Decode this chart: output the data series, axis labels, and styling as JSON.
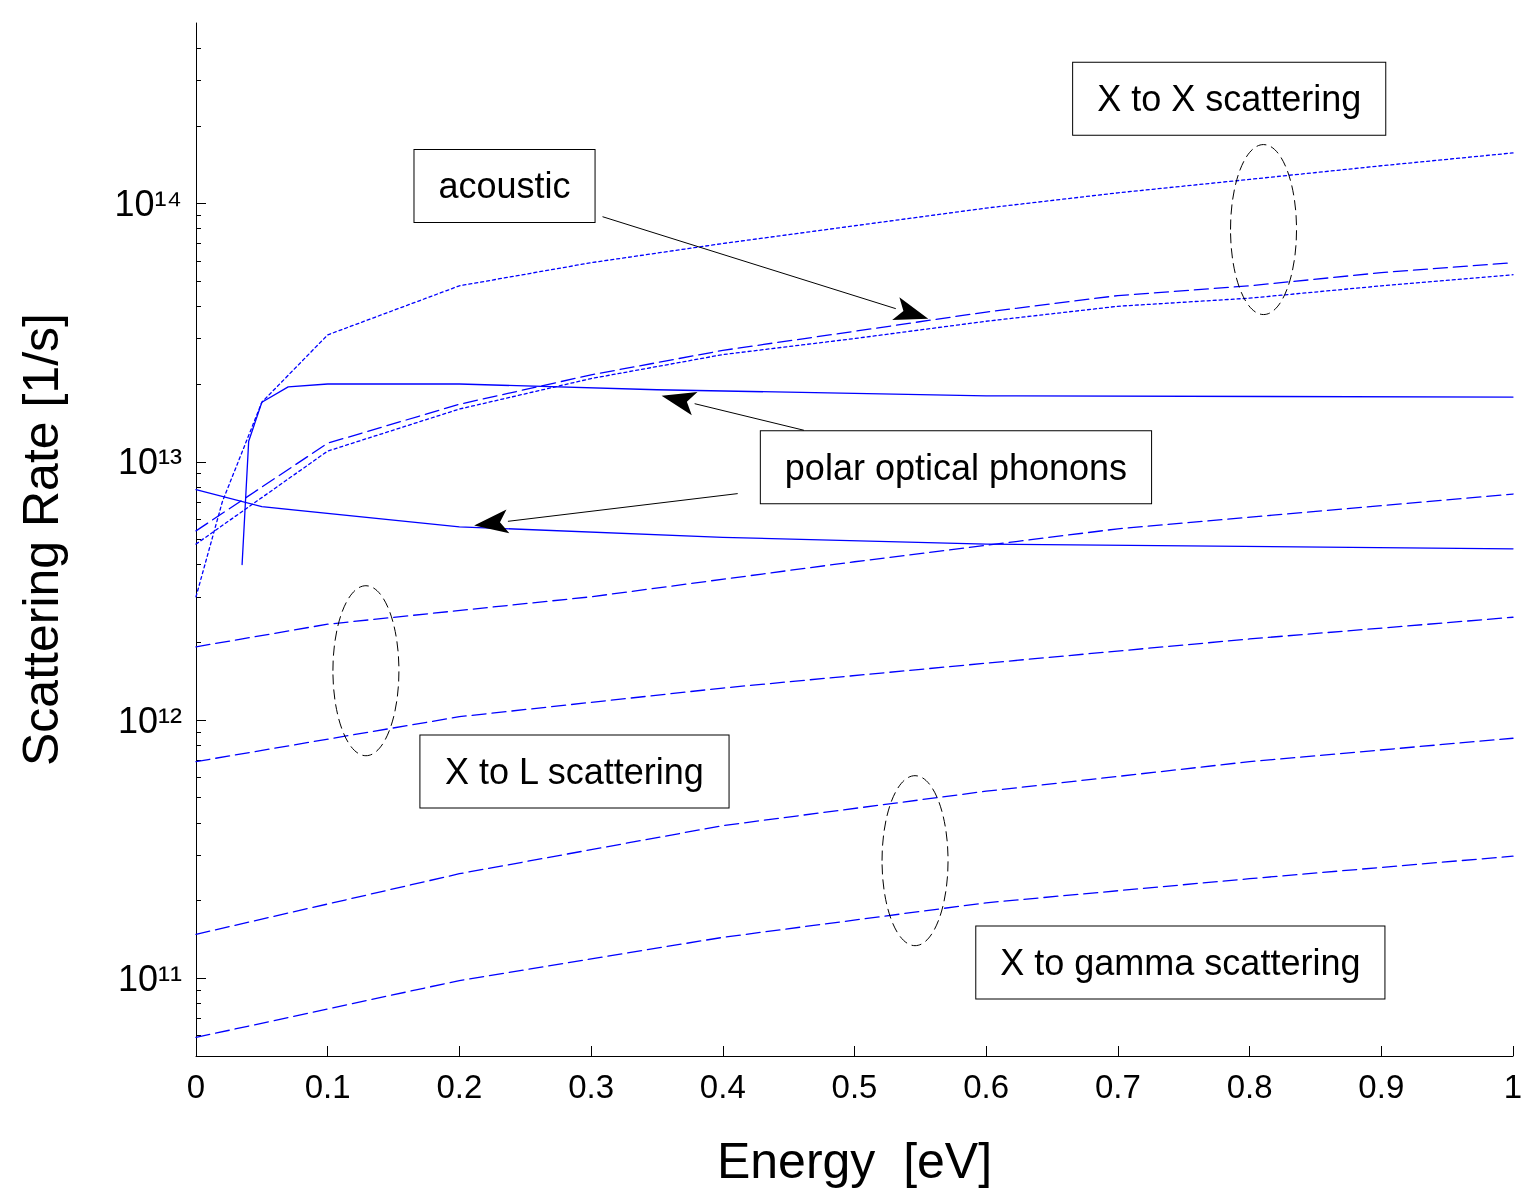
{
  "chart_data": {
    "type": "line",
    "xlabel": "Energy  [eV]",
    "ylabel": "Scattering Rate [1/s]",
    "log": "y",
    "grid": false,
    "marker": "none",
    "xlim": [
      0,
      1
    ],
    "xticks": [
      0,
      0.1,
      0.2,
      0.3,
      0.4,
      0.5,
      0.6,
      0.7,
      0.8,
      0.9,
      1
    ],
    "ylim": [
      50000000000.0,
      500000000000000.0
    ],
    "yticks": [
      {
        "value": 100000000000.0,
        "label": "10¹¹"
      },
      {
        "value": 1000000000000.0,
        "label": "10¹²"
      },
      {
        "value": 10000000000000.0,
        "label": "10¹³"
      },
      {
        "value": 100000000000000.0,
        "label": "10¹⁴"
      }
    ],
    "series": [
      {
        "color": "#0000ff",
        "line_style": "dotted",
        "x": [
          0,
          0.02,
          0.05,
          0.1,
          0.2,
          0.3,
          0.4,
          0.5,
          0.6,
          0.7,
          0.8,
          0.9,
          1
        ],
        "values": [
          3000000000000.0,
          7000000000000.0,
          17000000000000.0,
          31000000000000.0,
          48000000000000.0,
          59000000000000.0,
          70000000000000.0,
          82000000000000.0,
          96000000000000.0,
          110000000000000.0,
          124000000000000.0,
          140000000000000.0,
          157000000000000.0
        ]
      },
      {
        "color": "#0000ff",
        "line_style": "dashed",
        "x": [
          0,
          0.1,
          0.2,
          0.3,
          0.4,
          0.5,
          0.6,
          0.7,
          0.8,
          0.9,
          1
        ],
        "values": [
          5400000000000.0,
          11800000000000.0,
          16700000000000.0,
          21700000000000.0,
          27000000000000.0,
          32000000000000.0,
          38000000000000.0,
          44000000000000.0,
          48000000000000.0,
          54000000000000.0,
          59000000000000.0
        ]
      },
      {
        "color": "#0000ff",
        "line_style": "dotted",
        "x": [
          0,
          0.1,
          0.2,
          0.3,
          0.4,
          0.5,
          0.6,
          0.7,
          0.8,
          0.9,
          1
        ],
        "values": [
          4800000000000.0,
          11000000000000.0,
          16000000000000.0,
          21000000000000.0,
          26000000000000.0,
          30000000000000.0,
          35000000000000.0,
          40000000000000.0,
          43000000000000.0,
          48000000000000.0,
          53000000000000.0
        ]
      },
      {
        "color": "#0000ff",
        "line_style": "solid",
        "x": [
          0.035,
          0.04,
          0.05,
          0.07,
          0.1,
          0.2,
          0.35,
          0.6,
          1
        ],
        "values": [
          4000000000000.0,
          12000000000000.0,
          17000000000000.0,
          19500000000000.0,
          20000000000000.0,
          20000000000000.0,
          19000000000000.0,
          18000000000000.0,
          17800000000000.0
        ]
      },
      {
        "color": "#0000ff",
        "line_style": "solid",
        "x": [
          0,
          0.05,
          0.2,
          0.4,
          0.6,
          1
        ],
        "values": [
          7800000000000.0,
          6700000000000.0,
          5600000000000.0,
          5100000000000.0,
          4800000000000.0,
          4600000000000.0
        ]
      },
      {
        "color": "#0000ff",
        "line_style": "dashed",
        "x": [
          0,
          0.1,
          0.3,
          0.5,
          0.7,
          1
        ],
        "values": [
          1920000000000.0,
          2350000000000.0,
          3000000000000.0,
          4100000000000.0,
          5500000000000.0,
          7500000000000.0
        ]
      },
      {
        "color": "#0000ff",
        "line_style": "dashed",
        "x": [
          0,
          0.2,
          0.4,
          0.6,
          0.8,
          1
        ],
        "values": [
          690000000000.0,
          1030000000000.0,
          1330000000000.0,
          1660000000000.0,
          2060000000000.0,
          2500000000000.0
        ]
      },
      {
        "color": "#0000ff",
        "line_style": "dashed",
        "x": [
          0,
          0.2,
          0.4,
          0.6,
          0.8,
          1
        ],
        "values": [
          148000000000.0,
          254000000000.0,
          390000000000.0,
          530000000000.0,
          690000000000.0,
          850000000000.0
        ]
      },
      {
        "color": "#0000ff",
        "line_style": "dashed",
        "x": [
          0,
          0.2,
          0.4,
          0.6,
          0.8,
          1
        ],
        "values": [
          59000000000.0,
          98000000000.0,
          144000000000.0,
          196000000000.0,
          243000000000.0,
          297000000000.0
        ]
      }
    ],
    "annotations": [
      "X to X scattering",
      "acoustic",
      "polar optical phonons",
      "X to L scattering",
      "X to gamma scattering"
    ]
  }
}
